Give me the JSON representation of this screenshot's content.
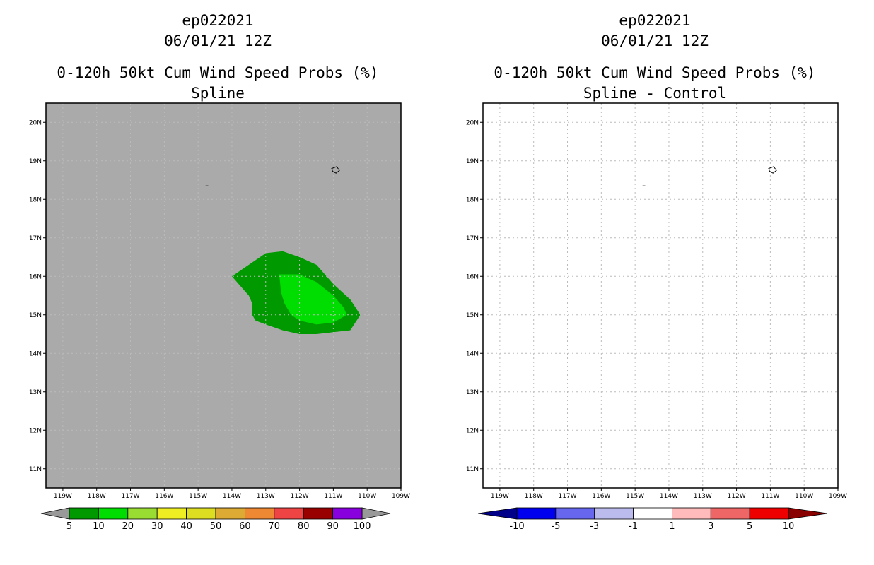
{
  "left_panel": {
    "title_lines": [
      "ep022021",
      "06/01/21 12Z",
      "0-120h 50kt Cum Wind Speed Probs (%)",
      "Spline"
    ],
    "background_color": "#aaaaaa",
    "lon_labels": [
      "119W",
      "118W",
      "117W",
      "116W",
      "115W",
      "114W",
      "113W",
      "112W",
      "111W",
      "110W",
      "109W"
    ],
    "lat_labels": [
      "11N",
      "12N",
      "13N",
      "14N",
      "15N",
      "16N",
      "17N",
      "18N",
      "19N",
      "20N"
    ],
    "colorbar": {
      "colors": [
        "#009900",
        "#00dd00",
        "#99dd33",
        "#eeee22",
        "#dddd22",
        "#ddaa33",
        "#ee8833",
        "#ee4444",
        "#990000",
        "#8800dd"
      ],
      "end_low_color": "#999999",
      "end_high_color": "#999999",
      "labels": [
        "5",
        "10",
        "20",
        "30",
        "40",
        "50",
        "60",
        "70",
        "80",
        "90",
        "100"
      ]
    },
    "probability_areas": [
      {
        "level": "5-10%",
        "color": "#009900",
        "vertices": [
          [
            -114.0,
            16.0
          ],
          [
            -113.5,
            16.3
          ],
          [
            -113.0,
            16.6
          ],
          [
            -112.5,
            16.65
          ],
          [
            -112.0,
            16.5
          ],
          [
            -111.5,
            16.3
          ],
          [
            -111.0,
            15.8
          ],
          [
            -110.5,
            15.4
          ],
          [
            -110.2,
            15.0
          ],
          [
            -110.5,
            14.6
          ],
          [
            -111.0,
            14.55
          ],
          [
            -111.5,
            14.5
          ],
          [
            -112.0,
            14.5
          ],
          [
            -112.5,
            14.6
          ],
          [
            -113.0,
            14.75
          ],
          [
            -113.3,
            14.85
          ],
          [
            -113.4,
            15.0
          ],
          [
            -113.4,
            15.3
          ],
          [
            -113.5,
            15.5
          ],
          [
            -113.7,
            15.7
          ]
        ]
      },
      {
        "level": "10-20%",
        "color": "#00dd00",
        "vertices": [
          [
            -112.6,
            16.05
          ],
          [
            -112.0,
            16.05
          ],
          [
            -111.5,
            15.85
          ],
          [
            -111.0,
            15.5
          ],
          [
            -110.7,
            15.2
          ],
          [
            -110.6,
            15.0
          ],
          [
            -111.0,
            14.8
          ],
          [
            -111.5,
            14.75
          ],
          [
            -112.0,
            14.85
          ],
          [
            -112.25,
            15.0
          ],
          [
            -112.45,
            15.3
          ],
          [
            -112.55,
            15.6
          ]
        ]
      }
    ],
    "coast_features": [
      {
        "name": "socorro-island",
        "vertices": [
          [
            -111.05,
            18.8
          ],
          [
            -110.9,
            18.85
          ],
          [
            -110.82,
            18.75
          ],
          [
            -110.92,
            18.68
          ],
          [
            -111.02,
            18.73
          ]
        ]
      },
      {
        "name": "clarion-island",
        "vertices": [
          [
            -114.78,
            18.35
          ],
          [
            -114.7,
            18.35
          ]
        ]
      }
    ]
  },
  "right_panel": {
    "title_lines": [
      "ep022021",
      "06/01/21 12Z",
      "0-120h 50kt Cum Wind Speed Probs (%)",
      "Spline - Control"
    ],
    "background_color": "#ffffff",
    "lon_labels": [
      "119W",
      "118W",
      "117W",
      "116W",
      "115W",
      "114W",
      "113W",
      "112W",
      "111W",
      "110W",
      "109W"
    ],
    "lat_labels": [
      "11N",
      "12N",
      "13N",
      "14N",
      "15N",
      "16N",
      "17N",
      "18N",
      "19N",
      "20N"
    ],
    "colorbar": {
      "colors": [
        "#0000ee",
        "#6666ee",
        "#bbbbee",
        "#ffffff",
        "#ffbbbb",
        "#ee6666",
        "#ee0000"
      ],
      "end_low_color": "#000088",
      "end_high_color": "#880000",
      "labels": [
        "-10",
        "-5",
        "-3",
        "-1",
        "1",
        "3",
        "5",
        "10"
      ]
    },
    "coast_features": [
      {
        "name": "socorro-island",
        "vertices": [
          [
            -111.05,
            18.8
          ],
          [
            -110.9,
            18.85
          ],
          [
            -110.82,
            18.75
          ],
          [
            -110.92,
            18.68
          ],
          [
            -111.02,
            18.73
          ]
        ]
      },
      {
        "name": "clarion-island",
        "vertices": [
          [
            -114.78,
            18.35
          ],
          [
            -114.7,
            18.35
          ]
        ]
      }
    ]
  }
}
